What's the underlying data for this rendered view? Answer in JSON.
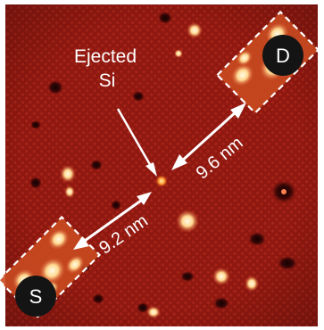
{
  "image": {
    "description_colors": {
      "background": "#8f1810",
      "dark_spot": "#1a0303",
      "bright_spot": "#ffe7b5",
      "annotation": "#ffffff",
      "electrode_badge": "#141414"
    }
  },
  "annotations": {
    "ejected_label_line1": "Ejected",
    "ejected_label_line2": "Si",
    "distance_upper": "9.6 nm",
    "distance_lower": "9.2 nm",
    "electrode_drain": "D",
    "electrode_source": "S"
  }
}
